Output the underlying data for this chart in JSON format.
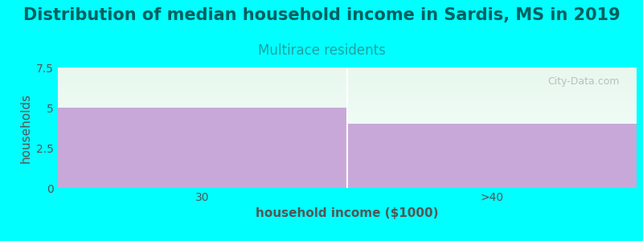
{
  "title": "Distribution of median household income in Sardis, MS in 2019",
  "subtitle": "Multirace residents",
  "title_color": "#006060",
  "subtitle_color": "#20a0a0",
  "xlabel": "household income ($1000)",
  "ylabel": "households",
  "categories": [
    "30",
    ">40"
  ],
  "values": [
    5,
    4
  ],
  "bar_color": "#c8a8d8",
  "background_color": "#00ffff",
  "plot_bg_top": "#e8f8ee",
  "plot_bg_bottom": "#f8fffe",
  "ylim": [
    0,
    7.5
  ],
  "yticks": [
    0,
    2.5,
    5,
    7.5
  ],
  "title_fontsize": 15,
  "subtitle_fontsize": 12,
  "axis_label_fontsize": 11,
  "tick_fontsize": 10,
  "watermark": "City-Data.com"
}
